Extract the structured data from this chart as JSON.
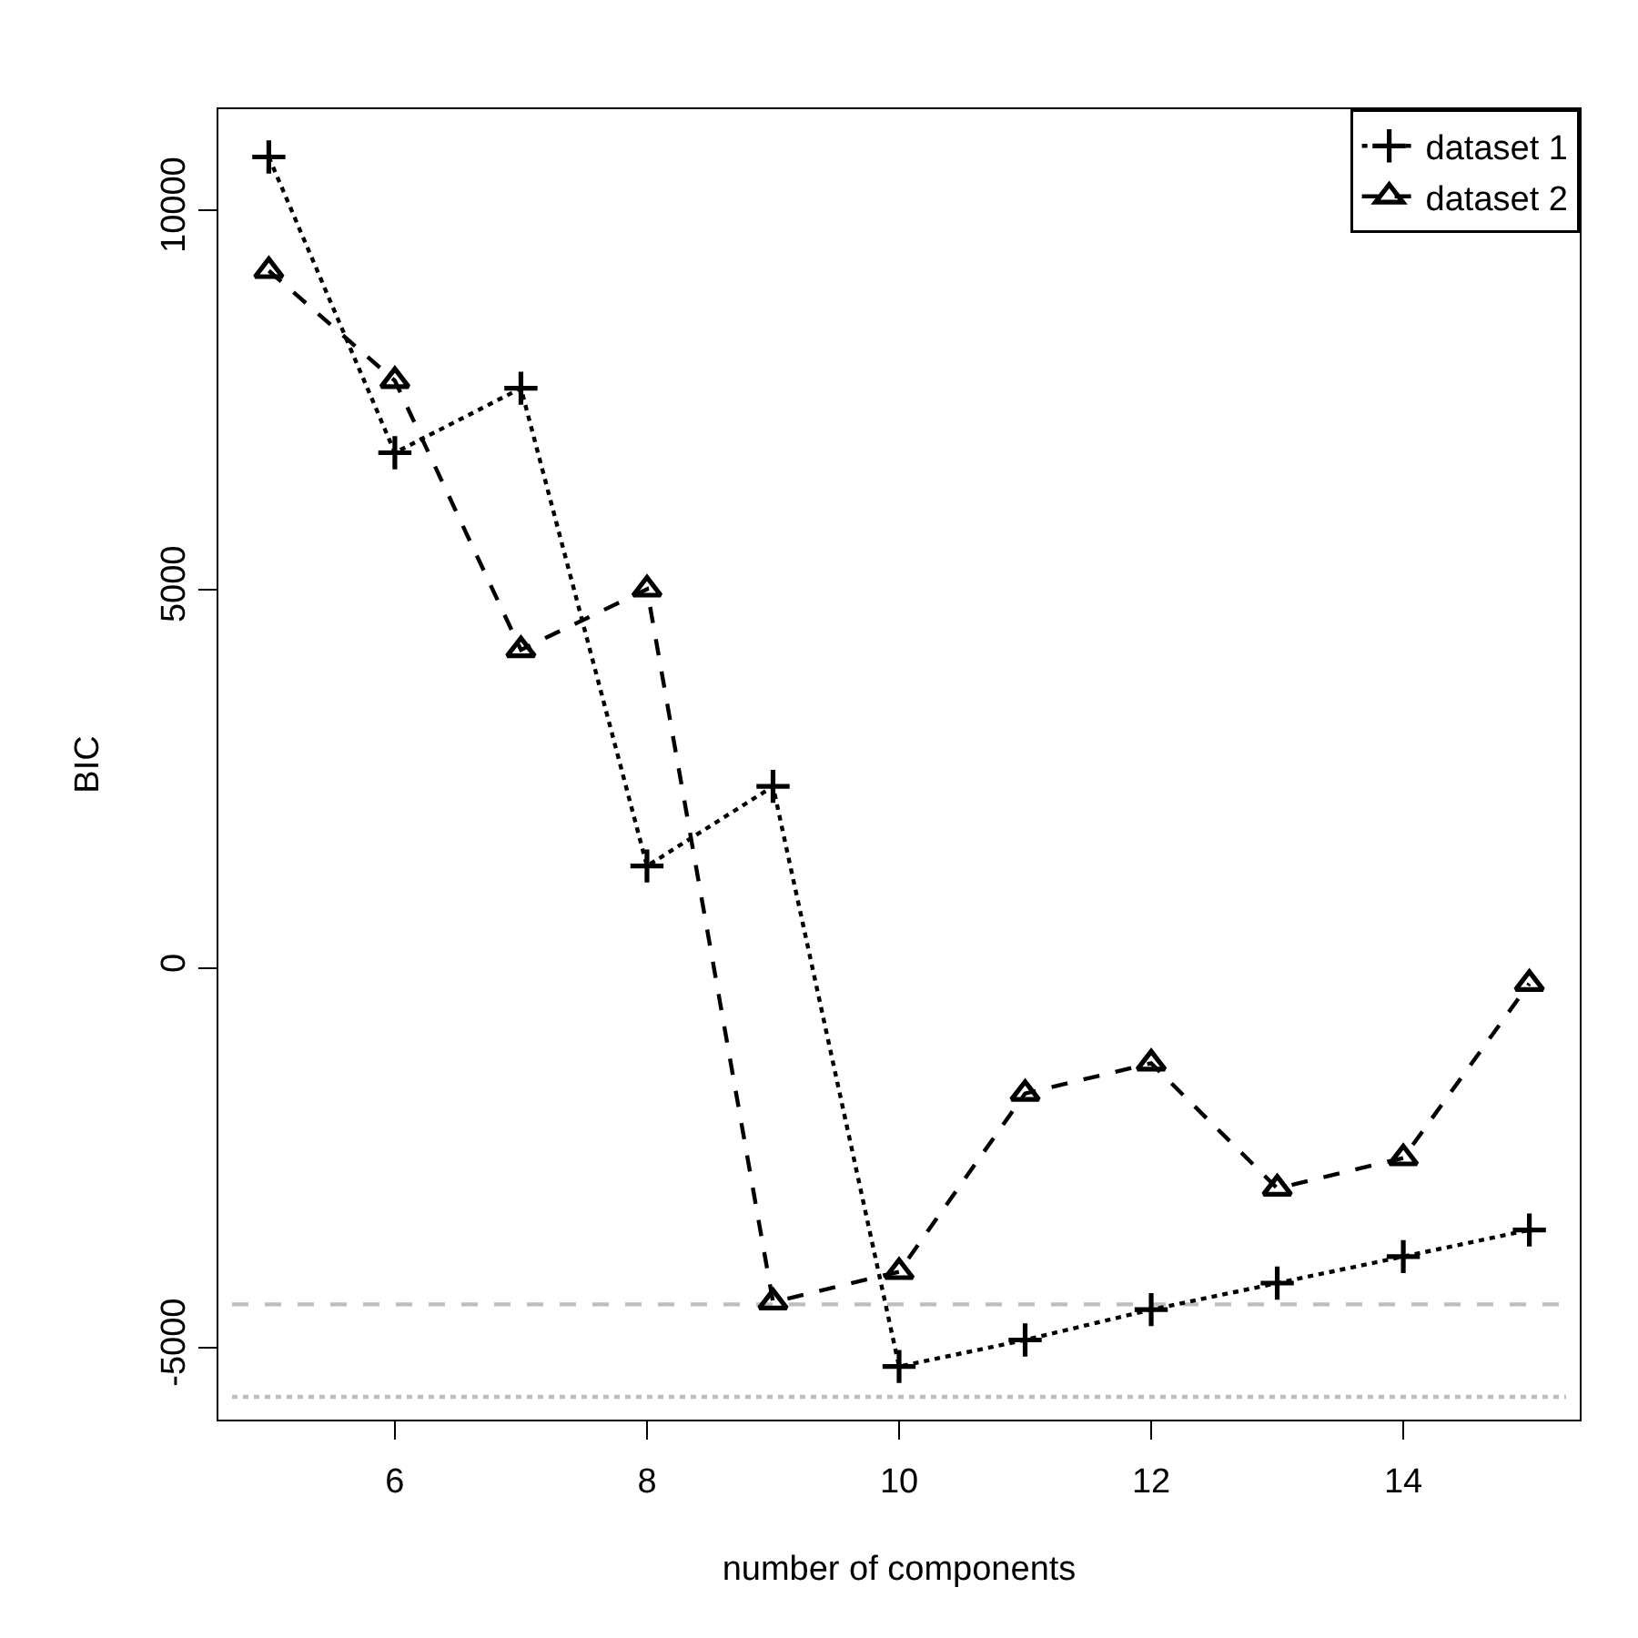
{
  "chart_data": {
    "type": "line",
    "xlabel": "number of components",
    "ylabel": "BIC",
    "x": [
      5,
      6,
      7,
      8,
      9,
      10,
      11,
      12,
      13,
      14,
      15
    ],
    "series": [
      {
        "name": "dataset 1",
        "color": "#000000",
        "marker": "cross",
        "line_style": "dotted",
        "values": [
          10700,
          6800,
          7650,
          1350,
          2400,
          -5250,
          -4900,
          -4500,
          -4150,
          -3800,
          -3450
        ]
      },
      {
        "name": "dataset 2",
        "color": "#000000",
        "marker": "triangle",
        "line_style": "dashed",
        "values": [
          9200,
          7750,
          4200,
          5000,
          -4400,
          -4000,
          -1650,
          -1250,
          -2900,
          -2500,
          -200
        ]
      }
    ],
    "ref_lines": [
      {
        "axis": "y",
        "value": -4430,
        "color": "#bebebe",
        "line_style": "dashed"
      },
      {
        "axis": "y",
        "value": -5650,
        "color": "#bebebe",
        "line_style": "dotted"
      }
    ],
    "xlim": [
      4.6,
      15.4
    ],
    "xticks": [
      6,
      8,
      10,
      12,
      14
    ],
    "ylim": [
      -5950,
      11330
    ],
    "yticks": [
      -5000,
      0,
      5000,
      10000
    ],
    "grid": false,
    "legend": "top right"
  }
}
